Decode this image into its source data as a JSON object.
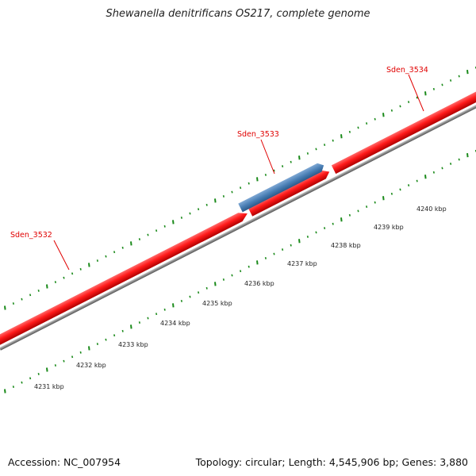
{
  "title": "Shewanella denitrificans OS217, complete genome",
  "footer": {
    "accession": "Accession: NC_007954",
    "summary": "Topology: circular; Length: 4,545,906 bp; Genes: 3,880"
  },
  "colors": {
    "cds_forward": "#ff1a1a",
    "cds_highlight": "#4a7fb5",
    "backbone": "#8a8a8a",
    "ticks": "#1a8a1a",
    "gene_label": "#e00000"
  },
  "genes": [
    {
      "name": "Sden_3532",
      "strand": "forward"
    },
    {
      "name": "Sden_3533",
      "strand": "reverse",
      "highlight": true
    },
    {
      "name": "Sden_3534",
      "strand": "forward"
    }
  ],
  "scale": {
    "unit": "kbp",
    "labels": [
      "4231 kbp",
      "4232 kbp",
      "4233 kbp",
      "4234 kbp",
      "4235 kbp",
      "4236 kbp",
      "4237 kbp",
      "4238 kbp",
      "4239 kbp",
      "4240 kbp"
    ]
  }
}
